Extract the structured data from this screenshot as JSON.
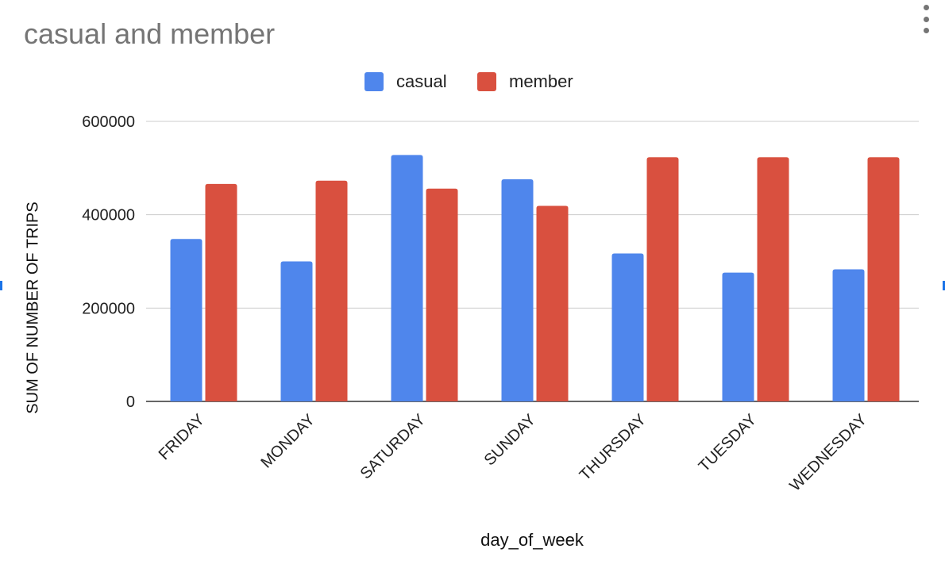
{
  "chart_data": {
    "type": "bar",
    "title": "casual and member",
    "xlabel": "day_of_week",
    "ylabel": "SUM OF NUMBER OF TRIPS",
    "categories": [
      "FRIDAY",
      "MONDAY",
      "SATURDAY",
      "SUNDAY",
      "THURSDAY",
      "TUESDAY",
      "WEDNESDAY"
    ],
    "series": [
      {
        "name": "casual",
        "color": "#4f86ec",
        "values": [
          348000,
          300000,
          528000,
          476000,
          317000,
          276000,
          283000
        ]
      },
      {
        "name": "member",
        "color": "#d9503f",
        "values": [
          466000,
          473000,
          456000,
          419000,
          523000,
          523000,
          523000
        ]
      }
    ],
    "ylim": [
      0,
      600000
    ],
    "yticks": [
      "0",
      "200000",
      "400000",
      "600000"
    ],
    "grid": true,
    "legend_position": "top"
  }
}
